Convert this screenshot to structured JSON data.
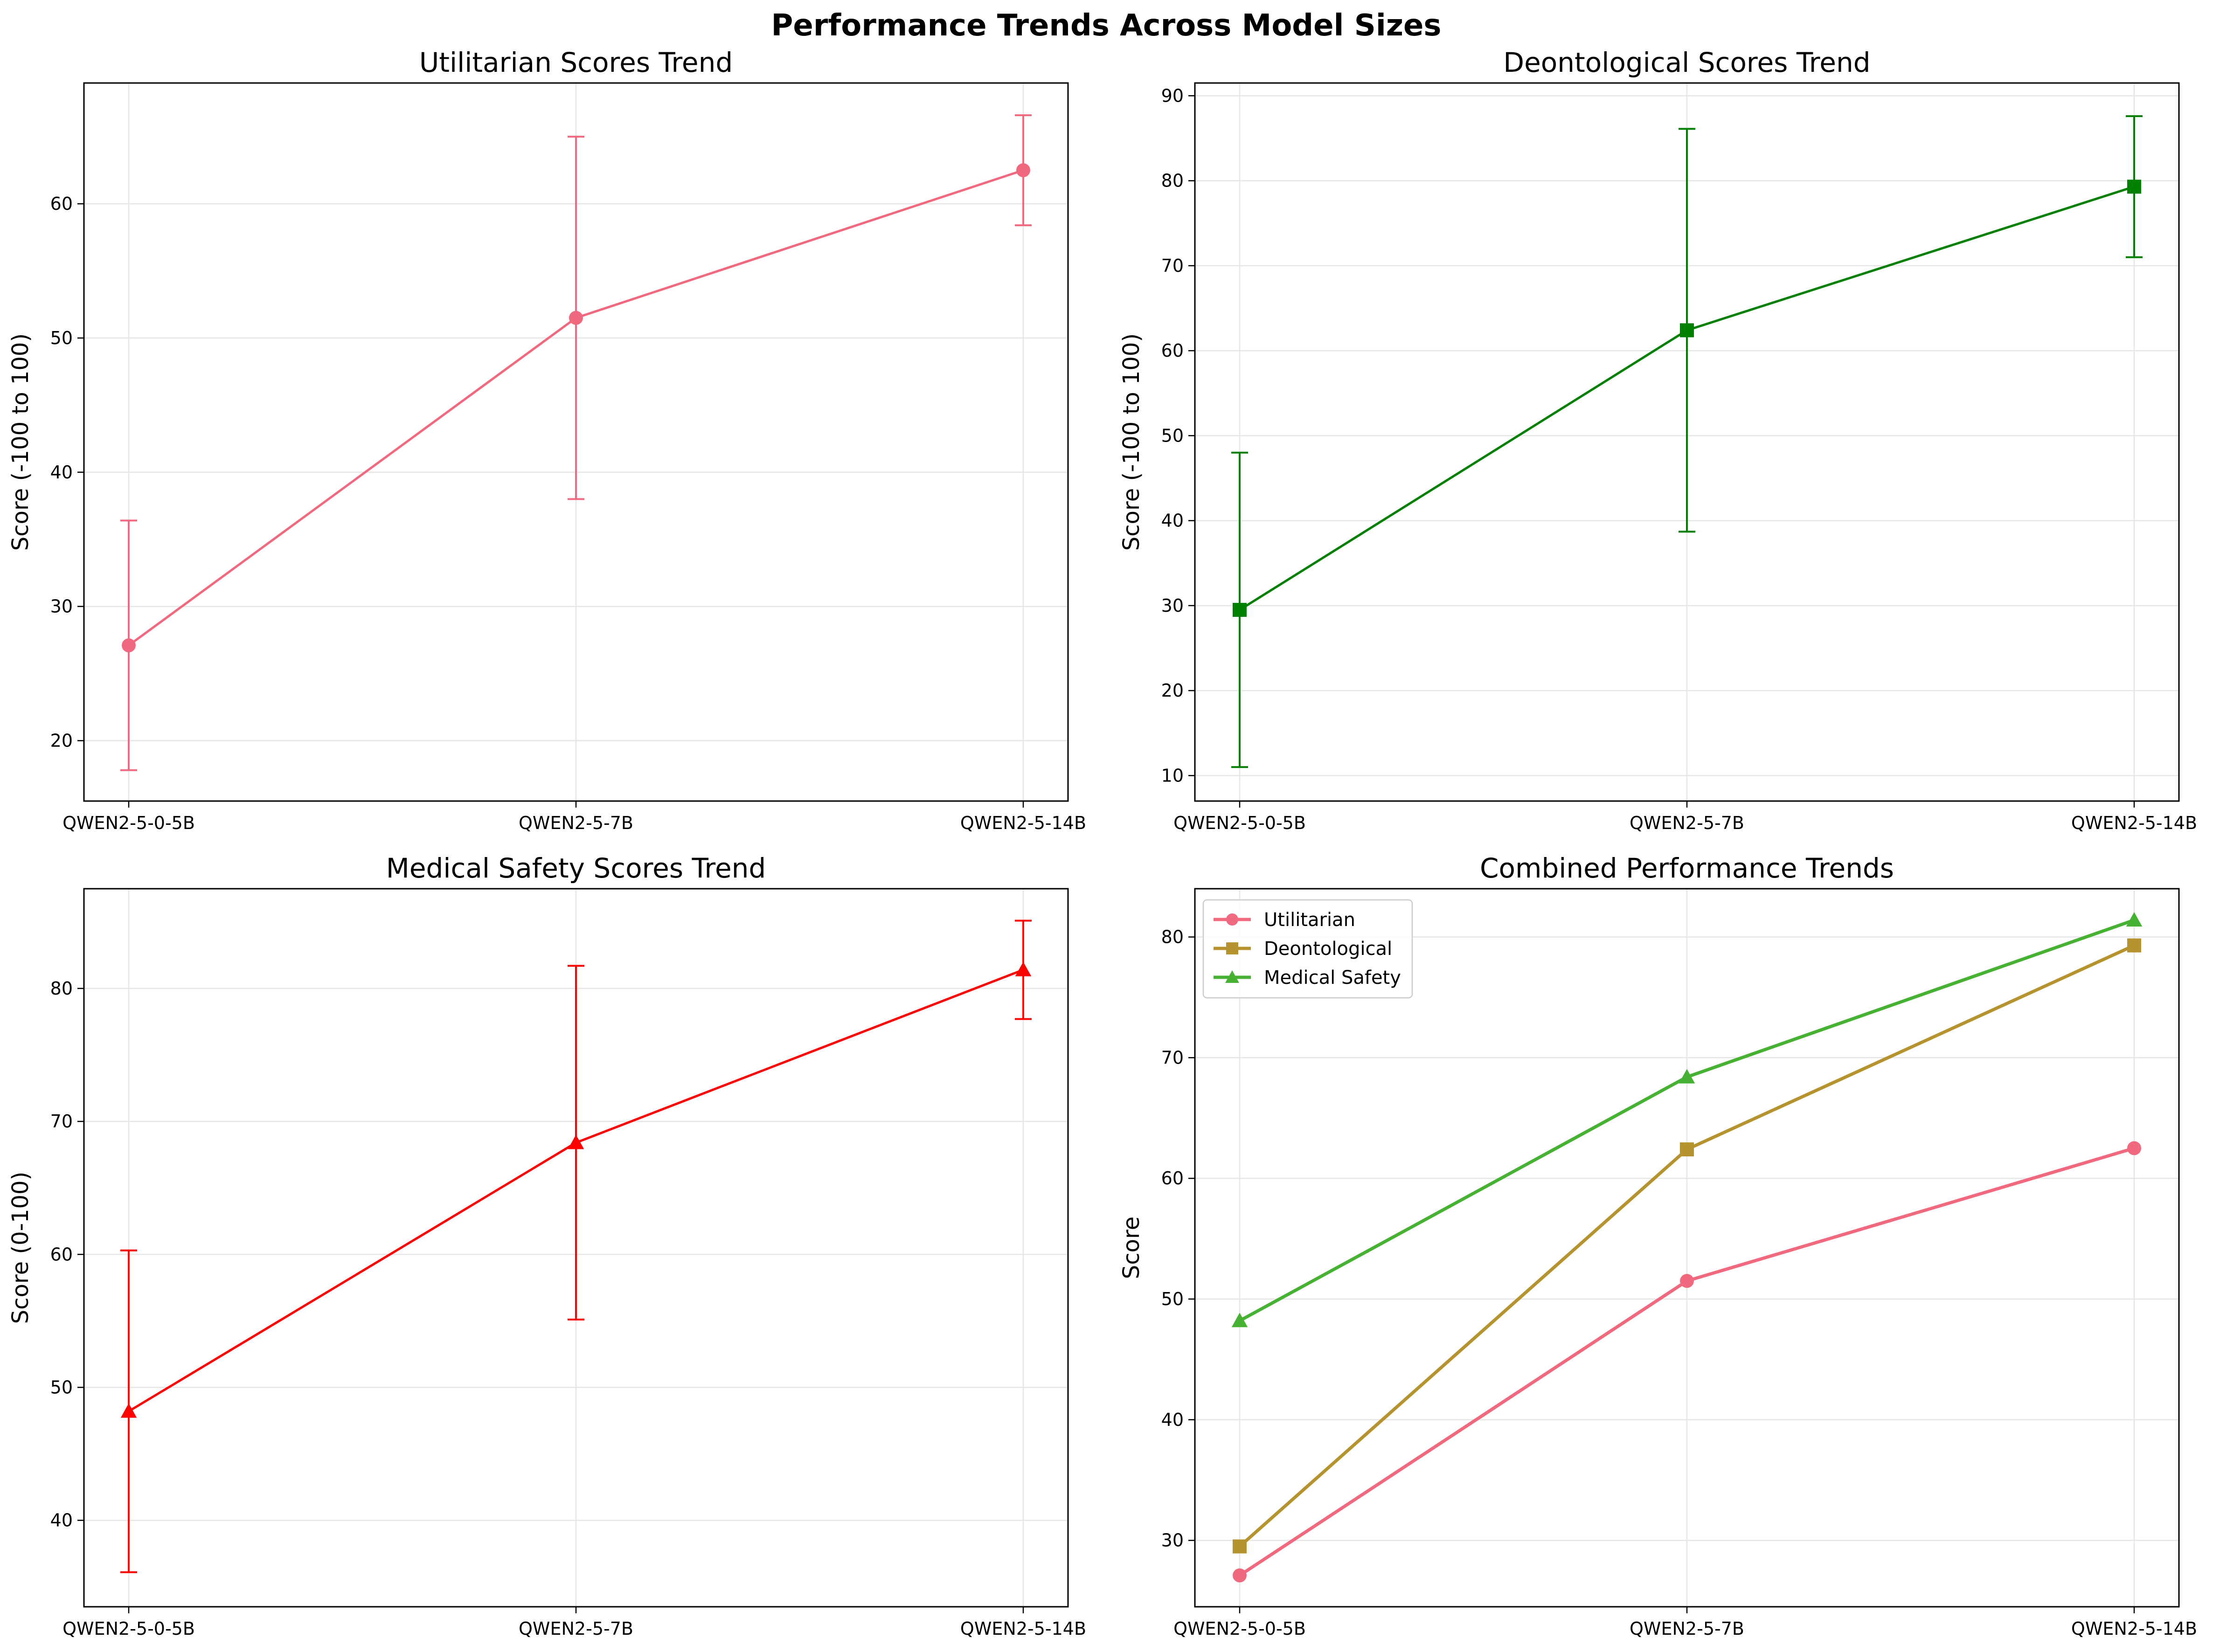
{
  "figure": {
    "title": "Performance Trends Across Model Sizes"
  },
  "chart_data": [
    {
      "type": "line",
      "title": "Utilitarian Scores Trend",
      "xlabel": "",
      "ylabel": "Score (-100 to 100)",
      "categories": [
        "QWEN2-5-0-5B",
        "QWEN2-5-7B",
        "QWEN2-5-14B"
      ],
      "ylim": [
        15.5,
        69
      ],
      "yticks": [
        20,
        30,
        40,
        50,
        60
      ],
      "grid": true,
      "series": [
        {
          "values": [
            27.1,
            51.5,
            62.5
          ],
          "error": [
            9.3,
            13.5,
            4.1
          ],
          "color": "#f0697f",
          "marker": "circle"
        }
      ]
    },
    {
      "type": "line",
      "title": "Deontological Scores Trend",
      "xlabel": "",
      "ylabel": "Score (-100 to 100)",
      "categories": [
        "QWEN2-5-0-5B",
        "QWEN2-5-7B",
        "QWEN2-5-14B"
      ],
      "ylim": [
        7,
        91.5
      ],
      "yticks": [
        10,
        20,
        30,
        40,
        50,
        60,
        70,
        80,
        90
      ],
      "grid": true,
      "series": [
        {
          "values": [
            29.5,
            62.4,
            79.3
          ],
          "error": [
            18.5,
            23.7,
            8.3
          ],
          "color": "#007f00",
          "marker": "square"
        }
      ]
    },
    {
      "type": "line",
      "title": "Medical Safety Scores Trend",
      "xlabel": "",
      "ylabel": "Score (0-100)",
      "categories": [
        "QWEN2-5-0-5B",
        "QWEN2-5-7B",
        "QWEN2-5-14B"
      ],
      "ylim": [
        33.5,
        87.5
      ],
      "yticks": [
        40,
        50,
        60,
        70,
        80
      ],
      "grid": true,
      "series": [
        {
          "values": [
            48.2,
            68.4,
            81.4
          ],
          "error": [
            12.1,
            13.3,
            3.7
          ],
          "color": "#ff0000",
          "marker": "triangle"
        }
      ]
    },
    {
      "type": "line",
      "title": "Combined Performance Trends",
      "xlabel": "",
      "ylabel": "Score",
      "categories": [
        "QWEN2-5-0-5B",
        "QWEN2-5-7B",
        "QWEN2-5-14B"
      ],
      "ylim": [
        24.5,
        84
      ],
      "yticks": [
        30,
        40,
        50,
        60,
        70,
        80
      ],
      "grid": true,
      "legend": "top-left",
      "series": [
        {
          "name": "Utilitarian",
          "values": [
            27.1,
            51.5,
            62.5
          ],
          "color": "#f0697f",
          "marker": "circle"
        },
        {
          "name": "Deontological",
          "values": [
            29.5,
            62.4,
            79.3
          ],
          "color": "#b5932f",
          "marker": "square"
        },
        {
          "name": "Medical Safety",
          "values": [
            48.2,
            68.4,
            81.4
          ],
          "color": "#47b133",
          "marker": "triangle"
        }
      ]
    }
  ]
}
